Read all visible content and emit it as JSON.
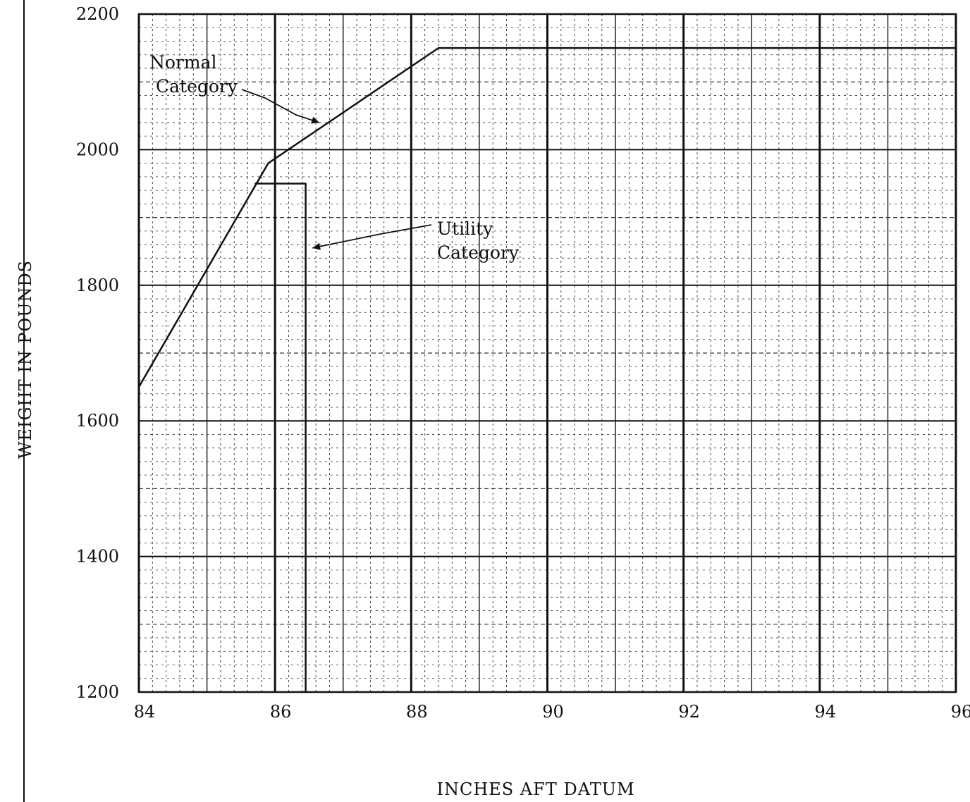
{
  "chart_data": {
    "type": "line",
    "title": "",
    "xlabel": "INCHES AFT DATUM",
    "ylabel": "WEIGHT IN POUNDS",
    "xlim": [
      84,
      96
    ],
    "ylim": [
      1200,
      2200
    ],
    "x_ticks": [
      84,
      86,
      88,
      90,
      92,
      94,
      96
    ],
    "y_ticks": [
      1200,
      1400,
      1600,
      1800,
      2000,
      2200
    ],
    "grid": true,
    "legend": "none",
    "series": [
      {
        "points": [
          [
            84.0,
            1650
          ],
          [
            85.9,
            1980
          ],
          [
            88.4,
            2150
          ],
          [
            96.0,
            2150
          ]
        ]
      },
      {
        "points": [
          [
            85.7,
            1950
          ],
          [
            86.45,
            1950
          ],
          [
            86.45,
            1200
          ]
        ]
      }
    ],
    "annotations": [
      {
        "lines": [
          "Normal",
          "Category"
        ],
        "arrow_to": [
          86.65,
          2040
        ]
      },
      {
        "lines": [
          "Utility",
          "Category"
        ],
        "arrow_to": [
          86.55,
          1855
        ]
      }
    ]
  }
}
